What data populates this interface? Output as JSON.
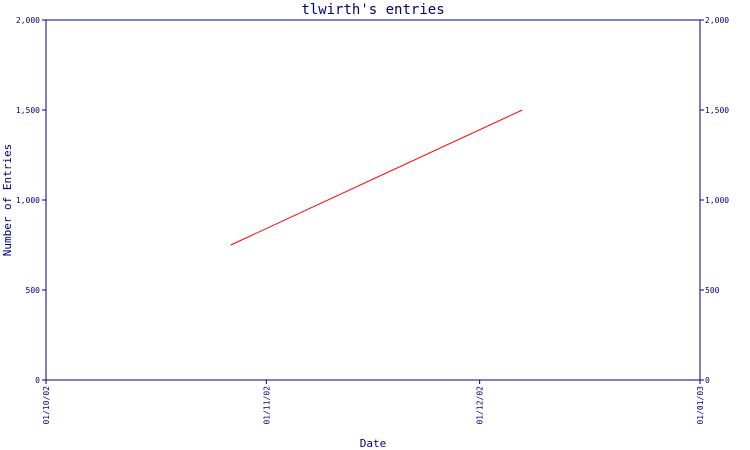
{
  "chart_data": {
    "type": "line",
    "title": "tlwirth's entries",
    "xlabel": "Date",
    "ylabel": "Number of Entries",
    "x_ticks": [
      "01/10/02",
      "01/11/02",
      "01/12/02",
      "01/01/03"
    ],
    "y_ticks": [
      "0",
      "500",
      "1,000",
      "1,500",
      "2,000"
    ],
    "ylim": [
      0,
      2000
    ],
    "xlim": [
      "2002-10-01",
      "2003-01-01"
    ],
    "grid": false,
    "y_axis_mirrored_right": true,
    "series": [
      {
        "color": "#ff0000",
        "x": [
          "2002-10-27",
          "2002-12-07"
        ],
        "values": [
          750,
          1500
        ]
      }
    ]
  },
  "colors": {
    "axis": "#000080",
    "text": "#000080",
    "line": "#ff0000",
    "background": "#ffffff"
  }
}
